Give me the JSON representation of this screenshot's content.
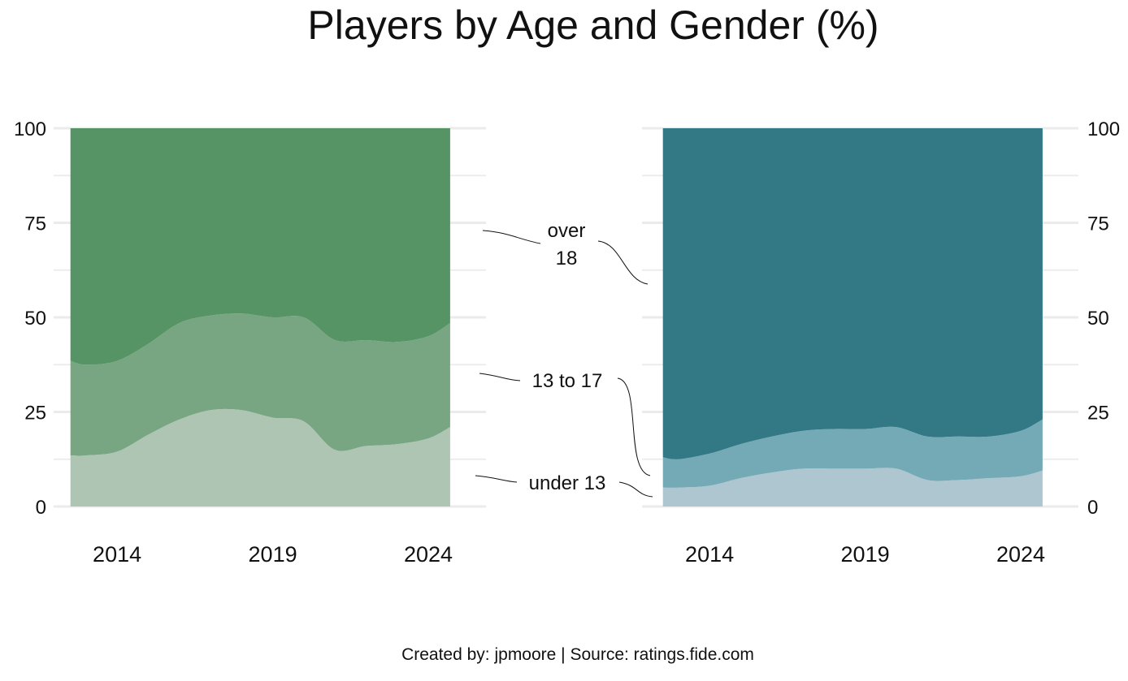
{
  "title": "Players by Age and Gender (%)",
  "caption": "Created by: jpmoore | Source: ratings.fide.com",
  "annotations": {
    "over18_line1": "over",
    "over18_line2": "18",
    "age13to17": "13 to 17",
    "under13": "under 13"
  },
  "chart_data": [
    {
      "type": "area",
      "stacked": true,
      "x": [
        2012.5,
        2013,
        2014,
        2015,
        2016,
        2017,
        2018,
        2019,
        2020,
        2021,
        2022,
        2023,
        2024,
        2024.7
      ],
      "series": [
        {
          "name": "under 13",
          "color": "#aec5b4",
          "values": [
            13.5,
            13.5,
            14.5,
            19,
            23,
            25.5,
            25.5,
            23.5,
            22.5,
            15,
            16,
            16.5,
            18,
            21
          ]
        },
        {
          "name": "13 to 17",
          "color": "#78a682",
          "values": [
            25,
            24,
            24,
            24,
            25.5,
            25,
            25.5,
            26.5,
            27.5,
            29,
            28,
            27,
            27,
            27.5
          ]
        },
        {
          "name": "over 18",
          "color": "#579465",
          "values": [
            61.5,
            62.5,
            61.5,
            57,
            51.5,
            49.5,
            49,
            50,
            50,
            56,
            56,
            56.5,
            55,
            51.5
          ]
        }
      ],
      "ylim": [
        0,
        100
      ],
      "yticks": [
        0,
        25,
        50,
        75,
        100
      ],
      "xticks": [
        2014,
        2019,
        2024
      ],
      "xlim": [
        2012.3,
        2025.2
      ],
      "y_axis_side": "left",
      "grid": true
    },
    {
      "type": "area",
      "stacked": true,
      "x": [
        2012.5,
        2013,
        2014,
        2015,
        2016,
        2017,
        2018,
        2019,
        2020,
        2021,
        2022,
        2023,
        2024,
        2024.7
      ],
      "series": [
        {
          "name": "under 13",
          "color": "#aec6cf",
          "values": [
            5,
            5,
            5.5,
            7.5,
            9,
            10,
            10,
            10,
            10,
            7,
            7,
            7.5,
            8,
            9.5
          ]
        },
        {
          "name": "13 to 17",
          "color": "#74aab6",
          "values": [
            8,
            7.5,
            8.5,
            9,
            9.5,
            10,
            10.5,
            10.5,
            11,
            11.5,
            11.5,
            11,
            12,
            13.5
          ]
        },
        {
          "name": "over 18",
          "color": "#327885",
          "values": [
            87,
            87.5,
            86,
            83.5,
            81.5,
            80,
            79.5,
            79.5,
            79,
            81.5,
            81.5,
            81.5,
            80,
            77
          ]
        }
      ],
      "ylim": [
        0,
        100
      ],
      "yticks": [
        0,
        25,
        50,
        75,
        100
      ],
      "xticks": [
        2014,
        2019,
        2024
      ],
      "xlim": [
        2012.3,
        2025.2
      ],
      "y_axis_side": "right",
      "grid": true
    }
  ]
}
